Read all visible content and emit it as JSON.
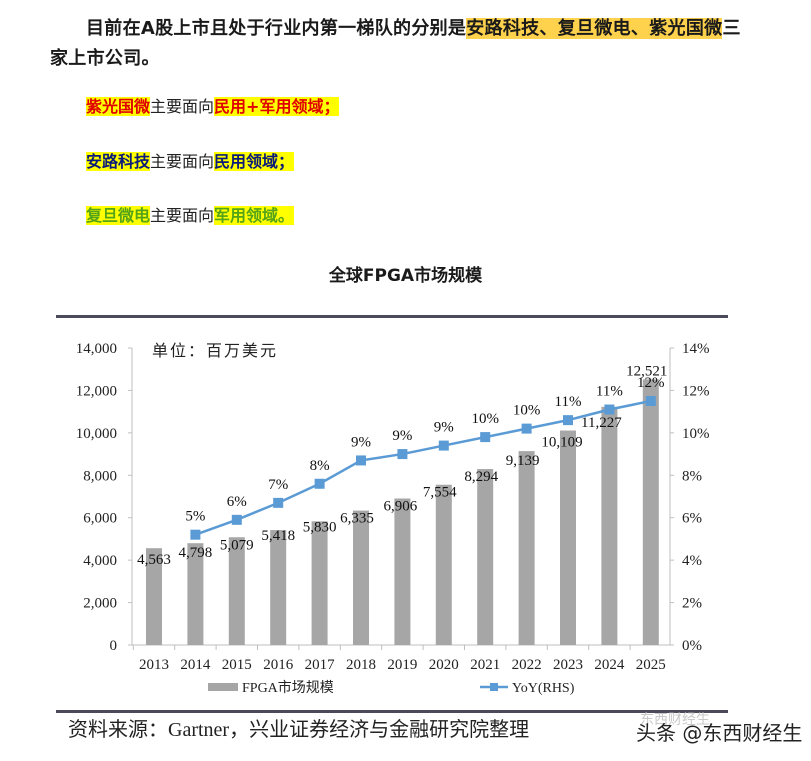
{
  "intro": {
    "prefix": "目前在A股上市且处于行业内第一梯队的分别是",
    "highlight": "安路科技、复旦微电、紫光国微",
    "suffix": "三家上市公司。"
  },
  "lines": [
    {
      "company": "紫光国微",
      "middle": "主要面向",
      "field": "民用+军用领域；"
    },
    {
      "company": "安路科技",
      "middle": "主要面向",
      "field": "民用领域；"
    },
    {
      "company": "复旦微电",
      "middle": "主要面向",
      "field": "军用领域。"
    }
  ],
  "chart_title": "全球FPGA市场规模",
  "unit_label": "单位：百万美元",
  "legend": {
    "bar": "FPGA市场规模",
    "line": "YoY(RHS)"
  },
  "source": "资料来源：Gartner，兴业证券经济与金融研究院整理",
  "watermark": "头条 @东西财经生",
  "watermark_faint": "东西财经生",
  "colors": {
    "bar": "#a6a6a6",
    "line": "#5b9bd5",
    "marker": "#5b9bd5",
    "highlight_orange": "#ffd24d",
    "highlight_yellow": "#ffff00",
    "red": "#e00000",
    "navy": "#0a1a7a",
    "green": "#54a318"
  },
  "chart_data": {
    "type": "bar",
    "title": "全球FPGA市场规模",
    "subtitle": "单位：百万美元",
    "categories": [
      "2013",
      "2014",
      "2015",
      "2016",
      "2017",
      "2018",
      "2019",
      "2020",
      "2021",
      "2022",
      "2023",
      "2024",
      "2025"
    ],
    "series": [
      {
        "name": "FPGA市场规模",
        "type": "bar",
        "axis": "left",
        "values": [
          4563,
          4798,
          5079,
          5418,
          5830,
          6335,
          6906,
          7554,
          8294,
          9139,
          10109,
          11227,
          12521
        ],
        "labels": [
          "4,563",
          "4,798",
          "5,079",
          "5,418",
          "5,830",
          "6,335",
          "6,906",
          "7,554",
          "8,294",
          "9,139",
          "10,109",
          "11,227",
          "12,521"
        ]
      },
      {
        "name": "YoY(RHS)",
        "type": "line",
        "axis": "right",
        "values": [
          null,
          5.2,
          5.9,
          6.7,
          7.6,
          8.7,
          9.0,
          9.4,
          9.8,
          10.2,
          10.6,
          11.1,
          11.5
        ],
        "labels": [
          "",
          "5%",
          "6%",
          "7%",
          "8%",
          "9%",
          "9%",
          "9%",
          "10%",
          "10%",
          "11%",
          "11%",
          "12%"
        ]
      }
    ],
    "ylim": [
      0,
      14000
    ],
    "yticks": [
      "0",
      "2,000",
      "4,000",
      "6,000",
      "8,000",
      "10,000",
      "12,000",
      "14,000"
    ],
    "y2lim": [
      0,
      14
    ],
    "y2ticks": [
      "0%",
      "2%",
      "4%",
      "6%",
      "8%",
      "10%",
      "12%",
      "14%"
    ],
    "xlabel": "",
    "ylabel": "",
    "legend_position": "bottom",
    "grid": false
  }
}
